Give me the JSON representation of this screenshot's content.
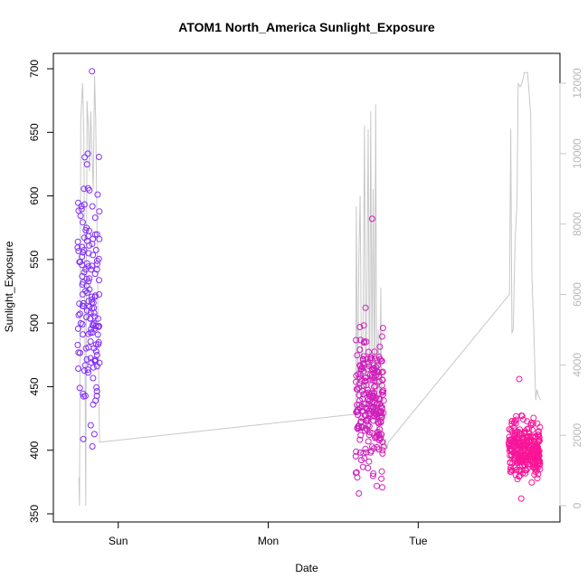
{
  "chart_data": {
    "type": "scatter",
    "title": "ATOM1 North_America Sunlight_Exposure",
    "xlabel": "Date",
    "ylabel": "Sunlight_Exposure",
    "x_ticks": [
      "Sun",
      "Mon",
      "Tue"
    ],
    "x_tick_positions_hours": [
      12,
      36,
      60
    ],
    "xlim_hours": [
      3.5,
      80.8
    ],
    "ylim": [
      350,
      700
    ],
    "y_ticks": [
      350,
      400,
      450,
      500,
      550,
      600,
      650,
      700
    ],
    "right_axis": {
      "color": "#c8c8c8",
      "ylim": [
        0,
        12000
      ],
      "ticks": [
        0,
        2000,
        4000,
        6000,
        8000,
        10000,
        12000
      ]
    },
    "point_color_start": "#7b2fff",
    "point_color_end": "#ff1493",
    "line_color": "#c8c8c8",
    "grid": false,
    "clusters": [
      {
        "start_hour": 5.5,
        "end_hour": 9.0,
        "n": 150,
        "mean": 520,
        "spread": 80,
        "min": 403,
        "max": 698
      },
      {
        "start_hour": 50.0,
        "end_hour": 54.5,
        "n": 240,
        "mean": 440,
        "spread": 45,
        "min": 366,
        "max": 582
      },
      {
        "start_hour": 74.5,
        "end_hour": 79.5,
        "n": 300,
        "mean": 400,
        "spread": 18,
        "min": 362,
        "max": 456
      }
    ],
    "line_series": {
      "name": "",
      "x_hours": [
        5.7,
        5.8,
        6.0,
        6.3,
        6.5,
        6.8,
        7.0,
        7.2,
        7.4,
        7.6,
        7.8,
        8.0,
        8.2,
        8.4,
        9.0,
        50.0,
        50.1,
        50.3,
        50.5,
        50.7,
        51.0,
        51.2,
        51.4,
        51.6,
        51.8,
        52.0,
        52.2,
        52.4,
        52.6,
        52.8,
        53.0,
        53.2,
        53.4,
        53.6,
        53.8,
        54.0,
        54.2,
        54.4,
        54.6,
        54.8,
        55.0,
        55.2,
        74.6,
        74.8,
        75.0,
        75.2,
        75.5,
        75.8,
        76.0,
        76.3,
        76.6,
        77.0,
        77.5,
        78.0,
        78.2,
        78.5,
        78.8,
        79.0,
        79.3,
        79.6
      ],
      "y_values": [
        800,
        0,
        11000,
        12000,
        10500,
        0,
        11500,
        10800,
        9500,
        11200,
        10000,
        9000,
        12200,
        11000,
        1800,
        2600,
        8500,
        3000,
        7000,
        8800,
        2500,
        5500,
        10800,
        3200,
        6500,
        10700,
        2200,
        11200,
        4000,
        9000,
        2800,
        11400,
        1500,
        5000,
        1800,
        6200,
        1600,
        2100,
        1700,
        1900,
        1600,
        1800,
        6000,
        10700,
        4900,
        5000,
        7500,
        8600,
        12000,
        11900,
        12000,
        12300,
        12300,
        11100,
        6500,
        5000,
        3000,
        3300,
        3100,
        3000
      ]
    }
  }
}
